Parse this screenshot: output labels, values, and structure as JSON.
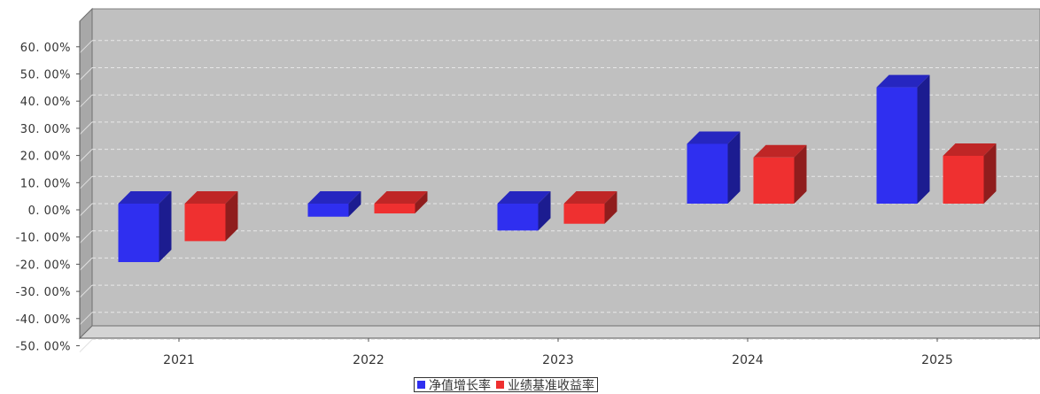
{
  "chart_data": {
    "type": "bar",
    "categories": [
      "2021",
      "2022",
      "2023",
      "2024",
      "2025"
    ],
    "series": [
      {
        "name": "净值增长率",
        "color": "#2f2ff0",
        "values": [
          -21.5,
          -4.8,
          -9.9,
          22.0,
          42.8
        ]
      },
      {
        "name": "业绩基准收益率",
        "color": "#ef3030",
        "values": [
          -13.8,
          -3.6,
          -7.4,
          17.0,
          17.6
        ]
      }
    ],
    "y_ticks": [
      "60. 00%",
      "50. 00%",
      "40. 00%",
      "30. 00%",
      "20. 00%",
      "10. 00%",
      "0. 00%",
      "-10. 00%",
      "-20. 00%",
      "-30. 00%",
      "-40. 00%",
      "-50. 00%"
    ],
    "y_tick_values": [
      60,
      50,
      40,
      30,
      20,
      10,
      0,
      -10,
      -20,
      -30,
      -40,
      -50
    ],
    "ylim": [
      -50,
      60
    ],
    "grid": true,
    "legend_position": "bottom-center",
    "plot_background": "#c0c0c0"
  }
}
